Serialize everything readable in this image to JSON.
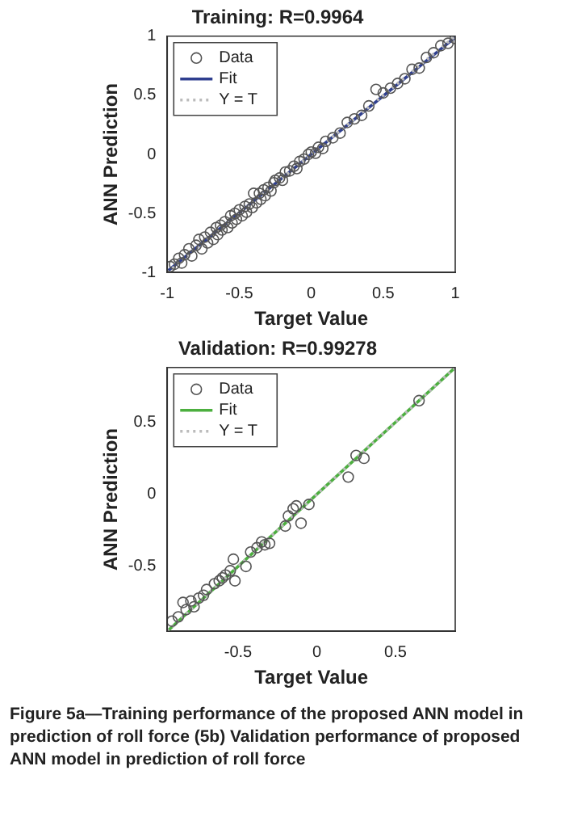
{
  "chart_data": [
    {
      "type": "scatter",
      "title": "Training: R=0.9964",
      "xlabel": "Target Value",
      "ylabel": "ANN Prediction",
      "xlim": [
        -1,
        1
      ],
      "ylim": [
        -1,
        1
      ],
      "xticks": [
        -1,
        -0.5,
        0,
        0.5,
        1
      ],
      "yticks": [
        -1,
        -0.5,
        0,
        0.5,
        1
      ],
      "grid": false,
      "legend": "top left",
      "series": [
        {
          "name": "Data",
          "marker": "circle",
          "color": "#555555",
          "x": [
            -0.98,
            -0.95,
            -0.92,
            -0.9,
            -0.88,
            -0.85,
            -0.83,
            -0.8,
            -0.78,
            -0.76,
            -0.74,
            -0.72,
            -0.7,
            -0.68,
            -0.66,
            -0.65,
            -0.63,
            -0.62,
            -0.6,
            -0.58,
            -0.56,
            -0.55,
            -0.53,
            -0.52,
            -0.5,
            -0.48,
            -0.46,
            -0.45,
            -0.43,
            -0.41,
            -0.4,
            -0.38,
            -0.36,
            -0.35,
            -0.33,
            -0.32,
            -0.3,
            -0.28,
            -0.26,
            -0.25,
            -0.22,
            -0.2,
            -0.18,
            -0.15,
            -0.12,
            -0.1,
            -0.08,
            -0.05,
            -0.02,
            0.0,
            0.03,
            0.05,
            0.08,
            0.1,
            0.15,
            0.2,
            0.25,
            0.3,
            0.35,
            0.4,
            0.45,
            0.5,
            0.55,
            0.6,
            0.65,
            0.7,
            0.75,
            0.8,
            0.85,
            0.9,
            0.95,
            1.0
          ],
          "values": [
            -0.95,
            -0.93,
            -0.88,
            -0.92,
            -0.85,
            -0.8,
            -0.86,
            -0.77,
            -0.72,
            -0.8,
            -0.7,
            -0.75,
            -0.66,
            -0.72,
            -0.62,
            -0.68,
            -0.6,
            -0.64,
            -0.57,
            -0.62,
            -0.52,
            -0.58,
            -0.5,
            -0.55,
            -0.47,
            -0.52,
            -0.44,
            -0.49,
            -0.42,
            -0.45,
            -0.33,
            -0.41,
            -0.33,
            -0.38,
            -0.3,
            -0.35,
            -0.28,
            -0.31,
            -0.24,
            -0.22,
            -0.2,
            -0.22,
            -0.15,
            -0.14,
            -0.1,
            -0.12,
            -0.06,
            -0.04,
            0.0,
            0.02,
            0.01,
            0.06,
            0.05,
            0.11,
            0.14,
            0.18,
            0.27,
            0.3,
            0.33,
            0.41,
            0.55,
            0.52,
            0.56,
            0.6,
            0.64,
            0.72,
            0.73,
            0.82,
            0.86,
            0.92,
            0.94,
            0.98
          ]
        },
        {
          "name": "Fit",
          "type": "line",
          "color": "#2f3f8f",
          "x": [
            -1,
            1
          ],
          "values": [
            -0.99,
            0.99
          ]
        },
        {
          "name": "Y = T",
          "type": "line",
          "line_style": "dotted",
          "color": "#bbbbbb",
          "x": [
            -1,
            1
          ],
          "values": [
            -1,
            1
          ]
        }
      ]
    },
    {
      "type": "scatter",
      "title": "Validation: R=0.99278",
      "xlabel": "Target Value",
      "ylabel": "ANN Prediction",
      "xlim": [
        -0.95,
        0.88
      ],
      "ylim": [
        -0.95,
        0.88
      ],
      "xticks": [
        -0.5,
        0,
        0.5
      ],
      "yticks": [
        -0.5,
        0,
        0.5
      ],
      "grid": false,
      "legend": "top left",
      "series": [
        {
          "name": "Data",
          "marker": "circle",
          "color": "#555555",
          "x": [
            -0.92,
            -0.88,
            -0.85,
            -0.83,
            -0.8,
            -0.78,
            -0.75,
            -0.72,
            -0.7,
            -0.65,
            -0.62,
            -0.6,
            -0.58,
            -0.55,
            -0.53,
            -0.52,
            -0.45,
            -0.42,
            -0.38,
            -0.35,
            -0.33,
            -0.3,
            -0.2,
            -0.18,
            -0.15,
            -0.13,
            -0.1,
            -0.05,
            0.2,
            0.25,
            0.3,
            0.65
          ],
          "values": [
            -0.88,
            -0.85,
            -0.75,
            -0.8,
            -0.74,
            -0.78,
            -0.72,
            -0.7,
            -0.66,
            -0.62,
            -0.6,
            -0.58,
            -0.56,
            -0.53,
            -0.45,
            -0.6,
            -0.5,
            -0.4,
            -0.37,
            -0.33,
            -0.35,
            -0.34,
            -0.22,
            -0.15,
            -0.1,
            -0.08,
            -0.2,
            -0.07,
            0.12,
            0.27,
            0.25,
            0.65
          ]
        },
        {
          "name": "Fit",
          "type": "line",
          "color": "#4caf3f",
          "x": [
            -0.95,
            0.88
          ],
          "values": [
            -0.95,
            0.88
          ]
        },
        {
          "name": "Y = T",
          "type": "line",
          "line_style": "dotted",
          "color": "#bbbbbb",
          "x": [
            -0.95,
            0.88
          ],
          "values": [
            -0.95,
            0.88
          ]
        }
      ],
      "annotations": [
        "Figure 5a—Training performance of the proposed ANN model in prediction of roll force (5b) Validation performance of proposed ANN model in prediction of roll force"
      ]
    }
  ]
}
